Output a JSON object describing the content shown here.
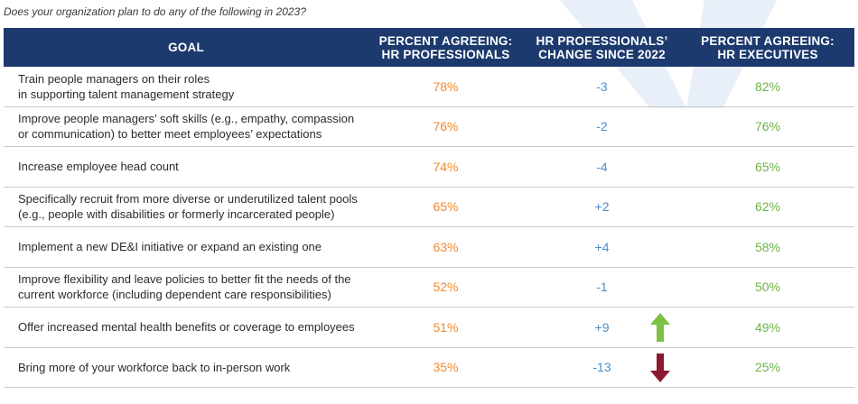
{
  "question": "Does your organization plan to do any of the following in 2023?",
  "chart_data": {
    "type": "table",
    "columns": [
      [
        "GOAL"
      ],
      [
        "PERCENT AGREEING:",
        "HR PROFESSIONALS"
      ],
      [
        "HR PROFESSIONALS’",
        "CHANGE SINCE 2022"
      ],
      [
        "PERCENT AGREEING:",
        "HR EXECUTIVES"
      ]
    ],
    "rows": [
      {
        "goal": [
          "Train people managers on their roles",
          "in supporting talent management strategy"
        ],
        "hr_professionals": "78%",
        "change_since_2022": "-3",
        "hr_executives": "82%",
        "arrow": ""
      },
      {
        "goal": [
          "Improve people managers’ soft skills (e.g., empathy, compassion",
          "or communication) to better meet employees’ expectations"
        ],
        "hr_professionals": "76%",
        "change_since_2022": "-2",
        "hr_executives": "76%",
        "arrow": ""
      },
      {
        "goal": [
          "Increase employee head count"
        ],
        "hr_professionals": "74%",
        "change_since_2022": "-4",
        "hr_executives": "65%",
        "arrow": ""
      },
      {
        "goal": [
          "Specifically recruit from more diverse or underutilized talent pools",
          "(e.g., people with disabilities or formerly incarcerated people)"
        ],
        "hr_professionals": "65%",
        "change_since_2022": "+2",
        "hr_executives": "62%",
        "arrow": ""
      },
      {
        "goal": [
          "Implement a new DE&I initiative or expand an existing one"
        ],
        "hr_professionals": "63%",
        "change_since_2022": "+4",
        "hr_executives": "58%",
        "arrow": ""
      },
      {
        "goal": [
          "Improve flexibility and leave policies to better fit the needs of the",
          "current workforce (including dependent care responsibilities)"
        ],
        "hr_professionals": "52%",
        "change_since_2022": "-1",
        "hr_executives": "50%",
        "arrow": ""
      },
      {
        "goal": [
          "Offer increased mental health benefits or coverage to employees"
        ],
        "hr_professionals": "51%",
        "change_since_2022": "+9",
        "hr_executives": "49%",
        "arrow": "up"
      },
      {
        "goal": [
          "Bring more of your workforce back to in-person work"
        ],
        "hr_professionals": "35%",
        "change_since_2022": "-13",
        "hr_executives": "25%",
        "arrow": "down"
      }
    ]
  },
  "colors": {
    "header_bg": "#1d3a6e",
    "hr_professionals": "#f08a2c",
    "change": "#4d8fc9",
    "hr_executives": "#6ab547",
    "arrow_up": "#7cc142",
    "arrow_down": "#8b1a2e"
  }
}
